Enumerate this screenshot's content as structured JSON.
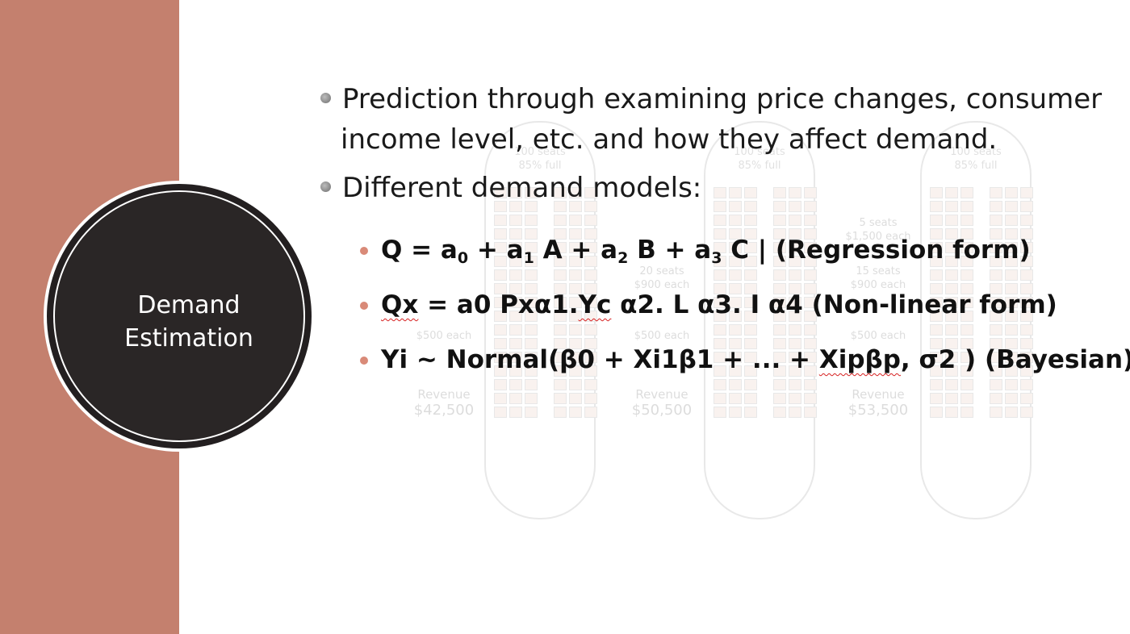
{
  "sidebar": {
    "accent_color": "#c4806e"
  },
  "title_circle": {
    "line1": "Demand",
    "line2": "Estimation"
  },
  "bullets": [
    {
      "line1": "Prediction through examining price changes, consumer",
      "line2": "income level, etc. and how they affect demand."
    },
    {
      "text": "Different demand models:"
    }
  ],
  "models": {
    "regression": {
      "q": "Q = a",
      "s0": "0",
      "p1": " + a",
      "s1": "1",
      "p2": " A + a",
      "s2": "2",
      "p3": " B + a",
      "s3": "3",
      "p4": " C  | (Regression form)"
    },
    "nonlinear": {
      "pre": "Qx",
      "mid": " = a0 Pxα1.",
      "yc": "Yc",
      "post": " α2. L α3. I α4  (Non-linear form)"
    },
    "bayesian": {
      "pre": "Yi ~ Normal(β0 + Xi1β1 + ... + ",
      "xip": "Xipβp",
      "post": ", σ2 ) (Bayesian)"
    }
  },
  "background": {
    "planes": [
      {
        "seats": "100 seats",
        "full": "85% full",
        "revenue_label": "Revenue",
        "revenue_value": "$42,500",
        "price": "$500 each"
      },
      {
        "seats": "100 seats",
        "full": "85% full",
        "mid_seats": "20 seats",
        "mid_price": "$900 each",
        "revenue_label": "Revenue",
        "revenue_value": "$50,500",
        "price": "$500 each"
      },
      {
        "seats": "100 seats",
        "full": "85% full",
        "top_seats": "5 seats",
        "top_price": "$1,500 each",
        "mid_seats": "15 seats",
        "mid_price": "$900 each",
        "revenue_label": "Revenue",
        "revenue_value": "$53,500",
        "price": "$500 each"
      }
    ]
  }
}
